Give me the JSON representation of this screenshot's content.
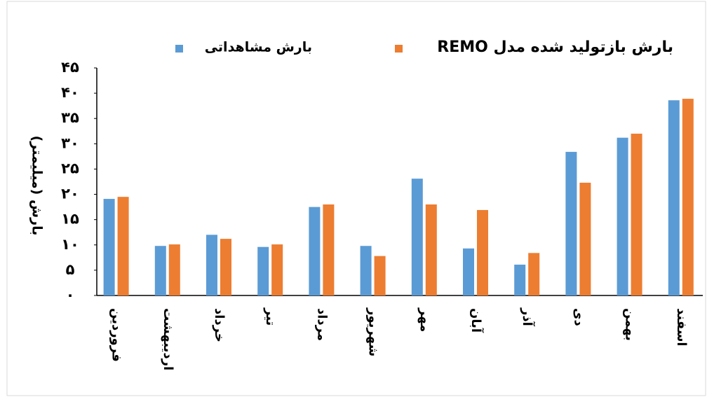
{
  "chart_data": {
    "type": "bar",
    "y_label": "بارش (میلیمتر)",
    "categories": [
      "فروردین",
      "اردیبهشت",
      "خرداد",
      "تیر",
      "مرداد",
      "شهریور",
      "مهر",
      "آبان",
      "آذر",
      "دی",
      "بهمن",
      "اسفند"
    ],
    "series": [
      {
        "name": "بارش مشاهداتی",
        "color": "#5b9bd5",
        "values": [
          19.1,
          9.8,
          12,
          9.6,
          17.5,
          9.8,
          23.1,
          9.3,
          6.1,
          28.4,
          31.2,
          38.6
        ]
      },
      {
        "name": "بارش بازتولید شده مدل REMO",
        "color": "#ed7d31",
        "values": [
          19.5,
          10.1,
          11.2,
          10.1,
          18,
          7.8,
          18,
          16.9,
          8.4,
          22.3,
          32,
          38.9
        ]
      }
    ],
    "ylim": [
      0,
      45
    ],
    "yticks": [
      {
        "value": 0,
        "label": "۰"
      },
      {
        "value": 5,
        "label": "۵"
      },
      {
        "value": 10,
        "label": "۱۰"
      },
      {
        "value": 15,
        "label": "۱۵"
      },
      {
        "value": 20,
        "label": "۲۰"
      },
      {
        "value": 25,
        "label": "۲۵"
      },
      {
        "value": 30,
        "label": "۳۰"
      },
      {
        "value": 35,
        "label": "۳۵"
      },
      {
        "value": 40,
        "label": "۴۰"
      },
      {
        "value": 45,
        "label": "۴۵"
      }
    ]
  }
}
